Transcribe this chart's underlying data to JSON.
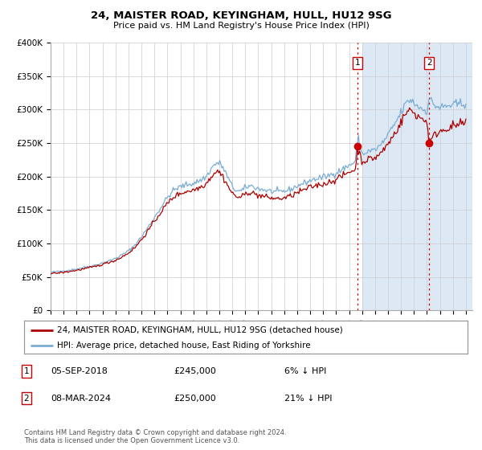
{
  "title": "24, MAISTER ROAD, KEYINGHAM, HULL, HU12 9SG",
  "subtitle": "Price paid vs. HM Land Registry's House Price Index (HPI)",
  "legend_line1": "24, MAISTER ROAD, KEYINGHAM, HULL, HU12 9SG (detached house)",
  "legend_line2": "HPI: Average price, detached house, East Riding of Yorkshire",
  "transaction1_date": "05-SEP-2018",
  "transaction1_price": "£245,000",
  "transaction1_hpi": "6% ↓ HPI",
  "transaction2_date": "08-MAR-2024",
  "transaction2_price": "£250,000",
  "transaction2_hpi": "21% ↓ HPI",
  "copyright": "Contains HM Land Registry data © Crown copyright and database right 2024.\nThis data is licensed under the Open Government Licence v3.0.",
  "ylim": [
    0,
    400000
  ],
  "yticks": [
    0,
    50000,
    100000,
    150000,
    200000,
    250000,
    300000,
    350000,
    400000
  ],
  "ytick_labels": [
    "£0",
    "£50K",
    "£100K",
    "£150K",
    "£200K",
    "£250K",
    "£300K",
    "£350K",
    "£400K"
  ],
  "xlim_start": 1995.0,
  "xlim_end": 2027.5,
  "hpi_color": "#7aadd4",
  "price_color": "#aa0000",
  "marker1_x": 2018.67,
  "marker1_y": 245000,
  "marker2_x": 2024.17,
  "marker2_y": 250000,
  "shaded_start": 2019.0,
  "shaded_color": "#dde8f5",
  "shaded_hatch": "////",
  "grid_color": "#cccccc",
  "marker_dot_color": "#cc0000",
  "marker_box_color": "#cc0000"
}
